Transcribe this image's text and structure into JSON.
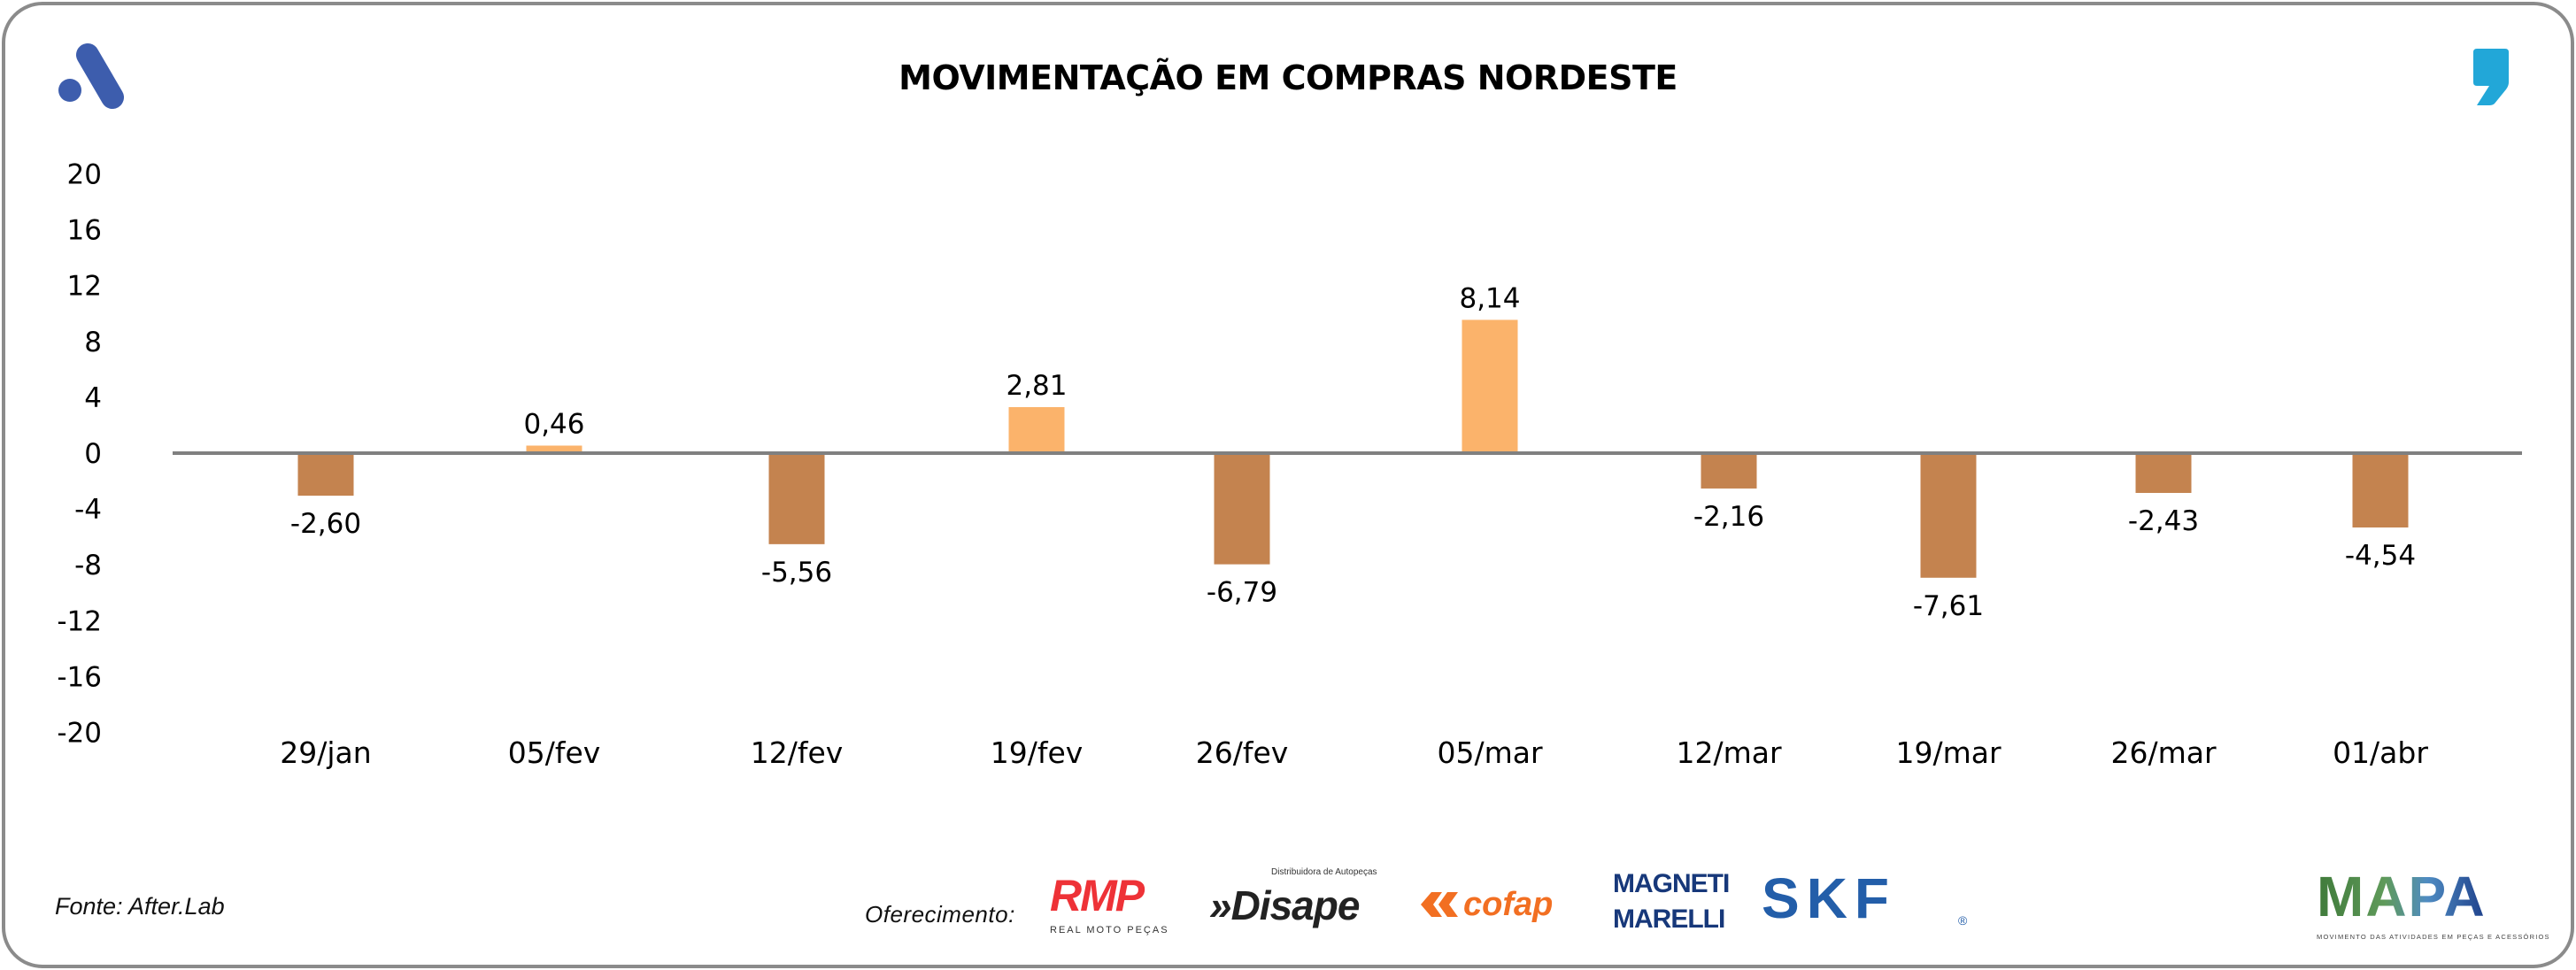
{
  "header": {
    "title": "MOVIMENTAÇÃO EM COMPRAS NORDESTE",
    "left_logo_icon": "brand-a-logo-icon",
    "right_logo_icon": "comma-quote-logo-icon"
  },
  "chart_data": {
    "type": "bar",
    "title": "MOVIMENTAÇÃO EM COMPRAS NORDESTE",
    "xlabel": "",
    "ylabel": "",
    "ylim": [
      -20,
      20
    ],
    "yticks": [
      20,
      16,
      12,
      8,
      4,
      0,
      -4,
      -8,
      -12,
      -16,
      -20
    ],
    "grid": false,
    "legend": "none",
    "categories": [
      "29/jan",
      "05/fev",
      "12/fev",
      "19/fev",
      "26/fev",
      "05/mar",
      "12/mar",
      "19/mar",
      "26/mar",
      "01/abr"
    ],
    "values": [
      -2.6,
      0.46,
      -5.56,
      2.81,
      -6.79,
      8.14,
      -2.16,
      -7.61,
      -2.43,
      -4.54
    ],
    "data_labels": [
      "-2,60",
      "0,46",
      "-5,56",
      "2,81",
      "-6,79",
      "8,14",
      "-2,16",
      "-7,61",
      "-2,43",
      "-4,54"
    ],
    "colors": {
      "positive": "#FBB36B",
      "negative": "#C4834F",
      "zero_line": "#808080"
    }
  },
  "footer": {
    "source": "Fonte: After.Lab",
    "offer_label": "Oferecimento:",
    "sponsors": [
      {
        "name": "RMP",
        "tagline": "REAL MOTO PEÇAS",
        "color": "#EE3237"
      },
      {
        "name": "»Disape",
        "tagline": "Distribuidora de Autopeças",
        "color": "#222222"
      },
      {
        "name": "cofap",
        "color": "#F26F22"
      },
      {
        "name": "MAGNETI",
        "name2": "MARELLI",
        "color": "#17387A"
      },
      {
        "name": "SKF",
        "reg": "®",
        "color": "#235EA9"
      }
    ],
    "mapa": {
      "name": "MAPA",
      "tagline": "MOVIMENTO DAS ATIVIDADES EM PEÇAS E ACESSÓRIOS"
    }
  }
}
